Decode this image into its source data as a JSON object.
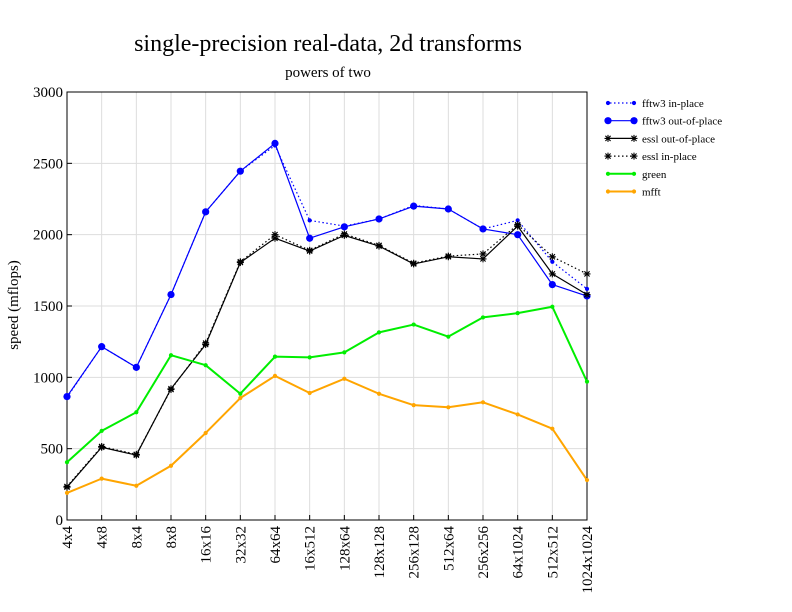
{
  "chart_data": {
    "type": "line",
    "title": "single-precision real-data, 2d transforms",
    "subtitle": "powers of two",
    "xlabel": "",
    "ylabel": "speed (mflops)",
    "ylim": [
      0,
      3000
    ],
    "yticks": [
      0,
      500,
      1000,
      1500,
      2000,
      2500,
      3000
    ],
    "grid": true,
    "legend_position": "top-right",
    "categories": [
      "4x4",
      "4x8",
      "8x4",
      "8x8",
      "16x16",
      "32x32",
      "64x64",
      "16x512",
      "128x64",
      "128x128",
      "256x128",
      "512x64",
      "256x256",
      "64x1024",
      "512x512",
      "1024x1024"
    ],
    "series": [
      {
        "name": "fftw3 in-place",
        "color": "#0000ff",
        "dash": "dotted",
        "marker": "small-dot",
        "values": [
          860,
          1215,
          1070,
          1580,
          2160,
          2445,
          2625,
          2100,
          2060,
          2110,
          2205,
          2180,
          2040,
          2100,
          1810,
          1620
        ]
      },
      {
        "name": "fftw3 out-of-place",
        "color": "#0000ff",
        "dash": "solid",
        "marker": "large-dot",
        "values": [
          865,
          1215,
          1070,
          1580,
          2160,
          2445,
          2640,
          1975,
          2055,
          2110,
          2200,
          2180,
          2040,
          2000,
          1650,
          1570
        ]
      },
      {
        "name": "essl out-of-place",
        "color": "#000000",
        "dash": "solid",
        "marker": "star",
        "values": [
          230,
          510,
          455,
          920,
          1230,
          1805,
          1975,
          1885,
          1995,
          1920,
          1795,
          1845,
          1830,
          2060,
          1725,
          1580
        ]
      },
      {
        "name": "essl in-place",
        "color": "#000000",
        "dash": "dotted",
        "marker": "star",
        "values": [
          235,
          515,
          460,
          915,
          1240,
          1810,
          2000,
          1890,
          2005,
          1925,
          1800,
          1850,
          1865,
          2070,
          1845,
          1725
        ]
      },
      {
        "name": "green",
        "color": "#00ee00",
        "dash": "solid",
        "marker": "small-dot",
        "values": [
          405,
          625,
          755,
          1155,
          1085,
          885,
          1145,
          1140,
          1175,
          1315,
          1370,
          1285,
          1420,
          1450,
          1495,
          970
        ]
      },
      {
        "name": "mfft",
        "color": "#ffa500",
        "dash": "solid",
        "marker": "small-dot",
        "values": [
          190,
          290,
          240,
          380,
          610,
          855,
          1010,
          890,
          990,
          885,
          805,
          790,
          825,
          740,
          640,
          280
        ]
      }
    ]
  }
}
